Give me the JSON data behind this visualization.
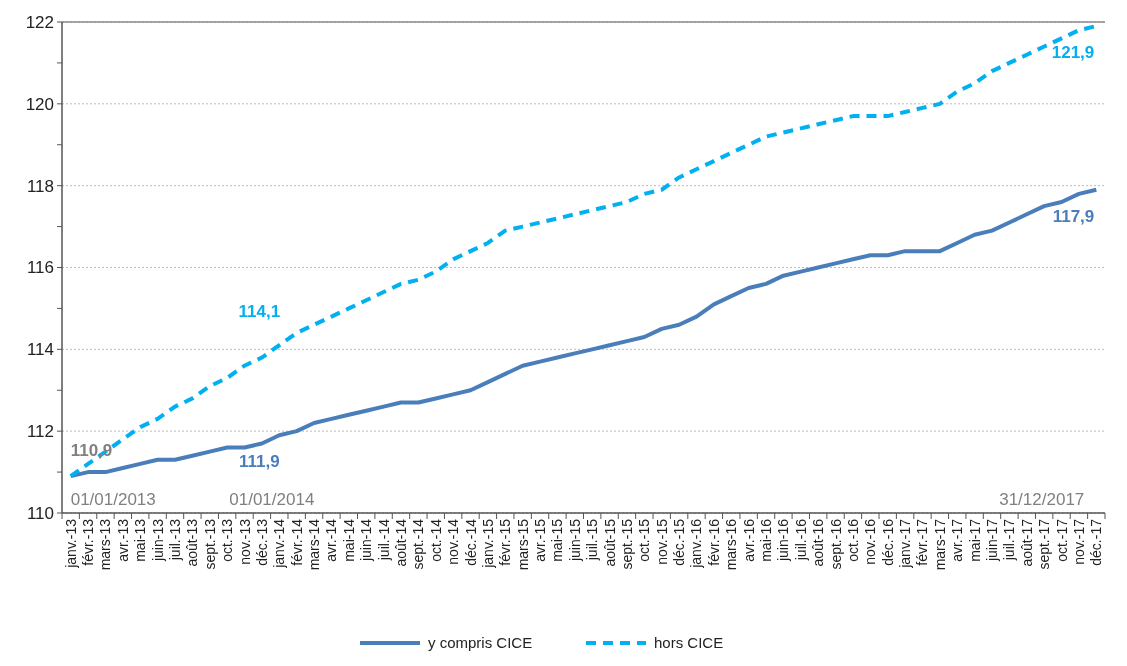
{
  "chart_data": {
    "type": "line",
    "categories": [
      "janv.-13",
      "févr.-13",
      "mars-13",
      "avr.-13",
      "mai-13",
      "juin-13",
      "juil.-13",
      "août-13",
      "sept.-13",
      "oct.-13",
      "nov.-13",
      "déc.-13",
      "janv.-14",
      "févr.-14",
      "mars-14",
      "avr.-14",
      "mai-14",
      "juin-14",
      "juil.-14",
      "août-14",
      "sept.-14",
      "oct.-14",
      "nov.-14",
      "déc.-14",
      "janv.-15",
      "févr.-15",
      "mars-15",
      "avr.-15",
      "mai-15",
      "juin-15",
      "juil.-15",
      "août-15",
      "sept.-15",
      "oct.-15",
      "nov.-15",
      "déc.-15",
      "janv.-16",
      "févr.-16",
      "mars-16",
      "avr.-16",
      "mai-16",
      "juin-16",
      "juil.-16",
      "août-16",
      "sept.-16",
      "oct.-16",
      "nov.-16",
      "déc.-16",
      "janv.-17",
      "févr.-17",
      "mars-17",
      "avr.-17",
      "mai-17",
      "juin-17",
      "juil.-17",
      "août-17",
      "sept.-17",
      "oct.-17",
      "nov.-17",
      "déc.-17"
    ],
    "series": [
      {
        "name": "y compris CICE",
        "color": "#4a7ebb",
        "line_style": "solid",
        "values": [
          110.9,
          111.0,
          111.0,
          111.1,
          111.2,
          111.3,
          111.3,
          111.4,
          111.5,
          111.6,
          111.6,
          111.7,
          111.9,
          112.0,
          112.2,
          112.3,
          112.4,
          112.5,
          112.6,
          112.7,
          112.7,
          112.8,
          112.9,
          113.0,
          113.2,
          113.4,
          113.6,
          113.7,
          113.8,
          113.9,
          114.0,
          114.1,
          114.2,
          114.3,
          114.5,
          114.6,
          114.8,
          115.1,
          115.3,
          115.5,
          115.6,
          115.8,
          115.9,
          116.0,
          116.1,
          116.2,
          116.3,
          116.3,
          116.4,
          116.4,
          116.4,
          116.6,
          116.8,
          116.9,
          117.1,
          117.3,
          117.5,
          117.6,
          117.8,
          117.9
        ]
      },
      {
        "name": "hors CICE",
        "color": "#00b0f0",
        "line_style": "dashed",
        "values": [
          110.9,
          111.2,
          111.5,
          111.8,
          112.1,
          112.3,
          112.6,
          112.8,
          113.1,
          113.3,
          113.6,
          113.8,
          114.1,
          114.4,
          114.6,
          114.8,
          115.0,
          115.2,
          115.4,
          115.6,
          115.7,
          115.9,
          116.2,
          116.4,
          116.6,
          116.9,
          117.0,
          117.1,
          117.2,
          117.3,
          117.4,
          117.5,
          117.6,
          117.8,
          117.9,
          118.2,
          118.4,
          118.6,
          118.8,
          119.0,
          119.2,
          119.3,
          119.4,
          119.5,
          119.6,
          119.7,
          119.7,
          119.7,
          119.8,
          119.9,
          120.0,
          120.3,
          120.5,
          120.8,
          121.0,
          121.2,
          121.4,
          121.6,
          121.8,
          121.9
        ]
      }
    ],
    "ylim": [
      110,
      122
    ],
    "yticks": [
      110,
      {
        "value": 111,
        "label": null
      },
      112,
      {
        "value": 113,
        "label": null
      },
      114,
      {
        "value": 115,
        "label": null
      },
      116,
      {
        "value": 117,
        "label": null
      },
      118,
      {
        "value": 119,
        "label": null
      },
      120,
      {
        "value": 121,
        "label": null
      },
      122
    ],
    "grid": "y",
    "legend": "bottom",
    "marker": "none",
    "annotations": [
      {
        "text": "110,9",
        "x": "janv.-13",
        "y": 110.9
      },
      {
        "text": "111,9",
        "x": "janv.-14",
        "y": 111.9
      },
      {
        "text": "114,1",
        "x": "janv.-14",
        "y": 114.1
      },
      {
        "text": "121,9",
        "x": "déc.-17",
        "y": 121.9
      },
      {
        "text": "117,9",
        "x": "déc.-17",
        "y": 117.9
      },
      "01/01/2013",
      "01/01/2014",
      "31/12/2017"
    ]
  }
}
